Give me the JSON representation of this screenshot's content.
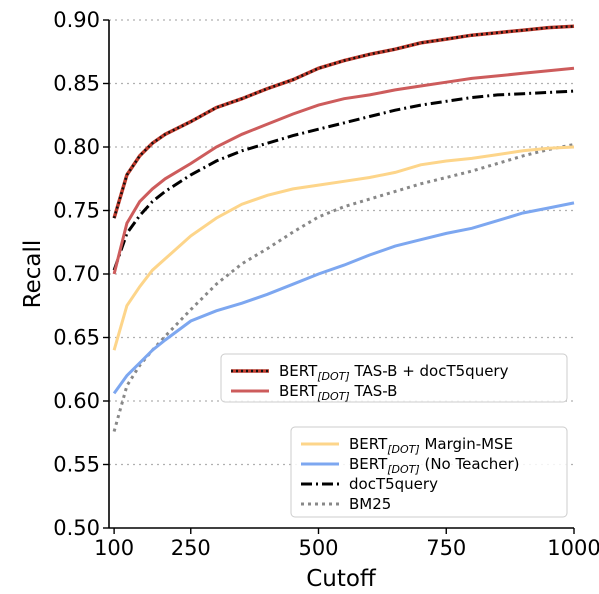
{
  "chart_data": {
    "type": "line",
    "title": "",
    "xlabel": "Cutoff",
    "ylabel": "Recall",
    "xlim": [
      90,
      1000
    ],
    "ylim": [
      0.5,
      0.9
    ],
    "xticks": [
      100,
      250,
      500,
      750,
      1000
    ],
    "xtick_labels": [
      "100",
      "250",
      "500",
      "750",
      "1000"
    ],
    "yticks": [
      0.5,
      0.55,
      0.6,
      0.65,
      0.7,
      0.75,
      0.8,
      0.85,
      0.9
    ],
    "ytick_labels": [
      "0.50",
      "0.55",
      "0.60",
      "0.65",
      "0.70",
      "0.75",
      "0.80",
      "0.85",
      "0.90"
    ],
    "grid": "horizontal dotted",
    "legends": [
      {
        "placement": "middle-right",
        "entries": [
          0,
          1
        ]
      },
      {
        "placement": "bottom-right",
        "entries": [
          2,
          3,
          4,
          5
        ]
      }
    ],
    "series": [
      {
        "name_main": "BERT",
        "name_sub": "[DOT]",
        "name_rest": " TAS-B + docT5query",
        "color": "#c0392b",
        "style": "dotted-over-solid",
        "x": [
          100,
          125,
          150,
          175,
          200,
          250,
          300,
          350,
          400,
          450,
          500,
          550,
          600,
          650,
          700,
          750,
          800,
          850,
          900,
          950,
          1000
        ],
        "y": [
          0.744,
          0.778,
          0.793,
          0.803,
          0.81,
          0.82,
          0.831,
          0.838,
          0.846,
          0.853,
          0.862,
          0.868,
          0.873,
          0.877,
          0.882,
          0.885,
          0.888,
          0.89,
          0.892,
          0.894,
          0.895
        ]
      },
      {
        "name_main": "BERT",
        "name_sub": "[DOT]",
        "name_rest": " TAS-B",
        "color": "#cd5c5c",
        "style": "solid",
        "x": [
          100,
          125,
          150,
          175,
          200,
          250,
          300,
          350,
          400,
          450,
          500,
          550,
          600,
          650,
          700,
          750,
          800,
          850,
          900,
          950,
          1000
        ],
        "y": [
          0.7,
          0.74,
          0.757,
          0.767,
          0.775,
          0.787,
          0.8,
          0.81,
          0.818,
          0.826,
          0.833,
          0.838,
          0.841,
          0.845,
          0.848,
          0.851,
          0.854,
          0.856,
          0.858,
          0.86,
          0.862
        ]
      },
      {
        "name_main": "BERT",
        "name_sub": "[DOT]",
        "name_rest": " Margin-MSE",
        "color": "#fdd58a",
        "style": "solid",
        "x": [
          100,
          125,
          150,
          175,
          200,
          250,
          300,
          350,
          400,
          450,
          500,
          550,
          600,
          650,
          700,
          750,
          800,
          850,
          900,
          950,
          1000
        ],
        "y": [
          0.64,
          0.675,
          0.69,
          0.703,
          0.712,
          0.73,
          0.744,
          0.755,
          0.762,
          0.767,
          0.77,
          0.773,
          0.776,
          0.78,
          0.786,
          0.789,
          0.791,
          0.794,
          0.797,
          0.799,
          0.8
        ]
      },
      {
        "name_main": "BERT",
        "name_sub": "[DOT]",
        "name_rest": " (No Teacher)",
        "color": "#7da7f0",
        "style": "solid",
        "x": [
          100,
          125,
          150,
          175,
          200,
          250,
          300,
          350,
          400,
          450,
          500,
          550,
          600,
          650,
          700,
          750,
          800,
          850,
          900,
          950,
          1000
        ],
        "y": [
          0.606,
          0.62,
          0.63,
          0.64,
          0.648,
          0.663,
          0.671,
          0.677,
          0.684,
          0.692,
          0.7,
          0.707,
          0.715,
          0.722,
          0.727,
          0.732,
          0.736,
          0.742,
          0.748,
          0.752,
          0.756
        ]
      },
      {
        "name_main": "docT5query",
        "name_sub": "",
        "name_rest": "",
        "color": "#000000",
        "style": "dashdot",
        "x": [
          100,
          125,
          150,
          175,
          200,
          250,
          300,
          350,
          400,
          450,
          500,
          550,
          600,
          650,
          700,
          750,
          800,
          850,
          900,
          950,
          1000
        ],
        "y": [
          0.703,
          0.732,
          0.746,
          0.757,
          0.765,
          0.778,
          0.789,
          0.797,
          0.803,
          0.809,
          0.814,
          0.819,
          0.824,
          0.829,
          0.833,
          0.836,
          0.839,
          0.841,
          0.842,
          0.843,
          0.844
        ]
      },
      {
        "name_main": "BM25",
        "name_sub": "",
        "name_rest": "",
        "color": "#888888",
        "style": "dotted",
        "x": [
          100,
          125,
          150,
          175,
          200,
          250,
          300,
          350,
          400,
          450,
          500,
          550,
          600,
          650,
          700,
          750,
          800,
          850,
          900,
          950,
          1000
        ],
        "y": [
          0.576,
          0.612,
          0.628,
          0.64,
          0.651,
          0.672,
          0.692,
          0.708,
          0.72,
          0.733,
          0.745,
          0.753,
          0.759,
          0.765,
          0.771,
          0.776,
          0.781,
          0.787,
          0.793,
          0.798,
          0.802
        ]
      }
    ]
  }
}
